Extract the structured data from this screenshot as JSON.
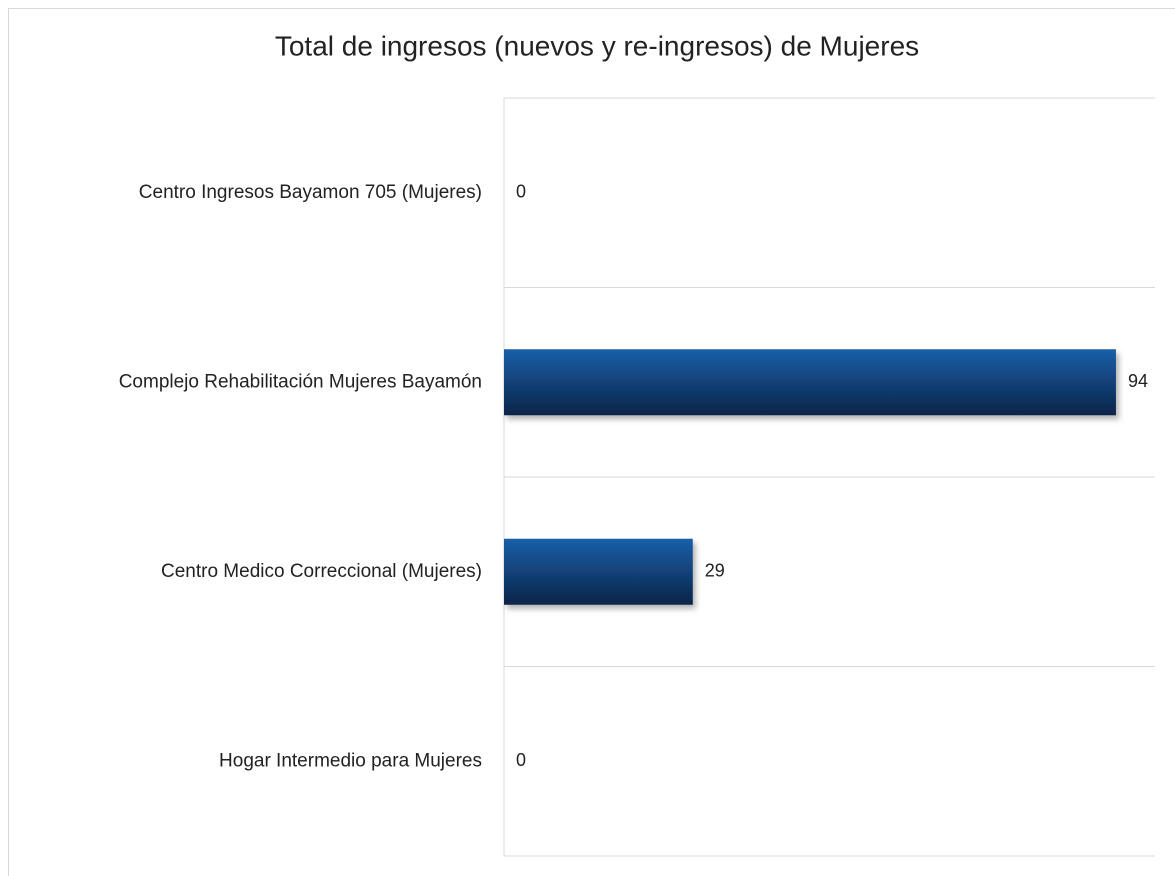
{
  "chart_data": {
    "type": "hbar",
    "title": "Total de ingresos (nuevos y re-ingresos) de Mujeres",
    "categories": [
      "Centro Ingresos Bayamon 705 (Mujeres)",
      "Complejo Rehabilitación Mujeres Bayamón",
      "Centro Medico Correccional (Mujeres)",
      "Hogar Intermedio para Mujeres"
    ],
    "values": [
      0,
      94,
      29,
      0
    ],
    "color": "#1a5fa8",
    "xlim": [
      0,
      100
    ],
    "grid": true
  }
}
